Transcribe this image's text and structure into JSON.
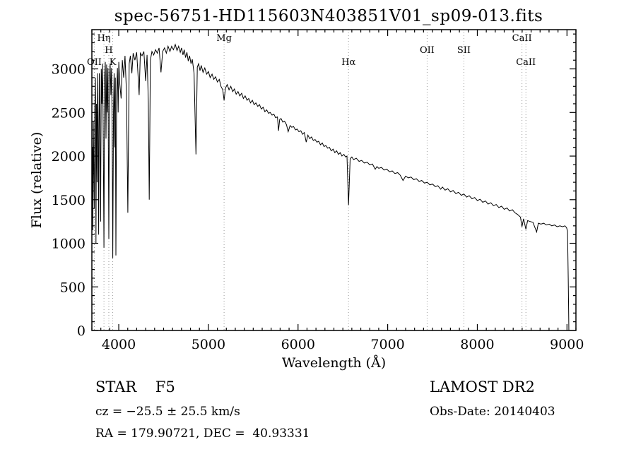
{
  "chart_data": {
    "type": "line",
    "title": "spec-56751-HD115603N403851V01_sp09-013.fits",
    "xlabel": "Wavelength (Å)",
    "ylabel": "Flux (relative)",
    "xlim": [
      3700,
      9100
    ],
    "ylim": [
      0,
      3450
    ],
    "x_major_ticks": [
      4000,
      5000,
      6000,
      7000,
      8000,
      9000
    ],
    "x_minor_step": 100,
    "y_major_ticks": [
      0,
      500,
      1000,
      1500,
      2000,
      2500,
      3000
    ],
    "y_minor_step": 100,
    "grid": false,
    "line_color": "#000000",
    "marker_line_color": "#9a9a9a",
    "legend": "none",
    "spectral_lines": [
      {
        "label": "Hη",
        "wl": 3835,
        "row": 0
      },
      {
        "label": "H",
        "wl": 3889,
        "row": 1
      },
      {
        "label": "OII",
        "wl": 3727,
        "row": 2
      },
      {
        "label": "K",
        "wl": 3933,
        "row": 2
      },
      {
        "label": "Mg",
        "wl": 5175,
        "row": 0
      },
      {
        "label": "Hα",
        "wl": 6563,
        "row": 2
      },
      {
        "label": "OII",
        "wl": 7440,
        "row": 1
      },
      {
        "label": "SII",
        "wl": 7850,
        "row": 1
      },
      {
        "label": "CaII",
        "wl": 8498,
        "row": 0
      },
      {
        "label": "CaII",
        "wl": 8542,
        "row": 2
      }
    ],
    "series": [
      {
        "name": "spectrum",
        "points": [
          [
            3700,
            1500
          ],
          [
            3706,
            2100
          ],
          [
            3711,
            1150
          ],
          [
            3716,
            2400
          ],
          [
            3722,
            1800
          ],
          [
            3727,
            1400
          ],
          [
            3733,
            2550
          ],
          [
            3740,
            2900
          ],
          [
            3746,
            1000
          ],
          [
            3752,
            2600
          ],
          [
            3758,
            1700
          ],
          [
            3764,
            2950
          ],
          [
            3770,
            2300
          ],
          [
            3776,
            1100
          ],
          [
            3783,
            2950
          ],
          [
            3790,
            2400
          ],
          [
            3798,
            1250
          ],
          [
            3805,
            3000
          ],
          [
            3812,
            2600
          ],
          [
            3820,
            3060
          ],
          [
            3828,
            2100
          ],
          [
            3835,
            950
          ],
          [
            3842,
            2900
          ],
          [
            3850,
            3080
          ],
          [
            3858,
            2200
          ],
          [
            3865,
            3050
          ],
          [
            3872,
            2500
          ],
          [
            3880,
            3010
          ],
          [
            3889,
            1050
          ],
          [
            3896,
            2900
          ],
          [
            3904,
            3060
          ],
          [
            3912,
            2700
          ],
          [
            3919,
            3010
          ],
          [
            3926,
            2400
          ],
          [
            3933,
            830
          ],
          [
            3941,
            2500
          ],
          [
            3948,
            2950
          ],
          [
            3955,
            2100
          ],
          [
            3962,
            2900
          ],
          [
            3968,
            860
          ],
          [
            3976,
            2700
          ],
          [
            3985,
            3010
          ],
          [
            3993,
            2500
          ],
          [
            4000,
            3080
          ],
          [
            4012,
            2820
          ],
          [
            4026,
            2660
          ],
          [
            4040,
            3100
          ],
          [
            4055,
            2900
          ],
          [
            4070,
            3150
          ],
          [
            4086,
            2720
          ],
          [
            4101,
            1350
          ],
          [
            4116,
            3060
          ],
          [
            4130,
            3150
          ],
          [
            4146,
            2950
          ],
          [
            4160,
            3180
          ],
          [
            4180,
            3100
          ],
          [
            4200,
            3190
          ],
          [
            4214,
            2950
          ],
          [
            4227,
            2700
          ],
          [
            4241,
            3180
          ],
          [
            4260,
            3150
          ],
          [
            4280,
            3200
          ],
          [
            4300,
            2860
          ],
          [
            4316,
            3160
          ],
          [
            4330,
            2620
          ],
          [
            4340,
            1500
          ],
          [
            4353,
            3100
          ],
          [
            4370,
            3200
          ],
          [
            4390,
            3160
          ],
          [
            4410,
            3220
          ],
          [
            4430,
            3180
          ],
          [
            4450,
            3240
          ],
          [
            4471,
            2960
          ],
          [
            4490,
            3200
          ],
          [
            4510,
            3240
          ],
          [
            4531,
            3180
          ],
          [
            4550,
            3260
          ],
          [
            4571,
            3200
          ],
          [
            4590,
            3260
          ],
          [
            4610,
            3220
          ],
          [
            4630,
            3280
          ],
          [
            4650,
            3210
          ],
          [
            4668,
            3260
          ],
          [
            4686,
            3190
          ],
          [
            4700,
            3240
          ],
          [
            4716,
            3160
          ],
          [
            4730,
            3220
          ],
          [
            4745,
            3130
          ],
          [
            4760,
            3190
          ],
          [
            4775,
            3090
          ],
          [
            4790,
            3150
          ],
          [
            4806,
            3060
          ],
          [
            4820,
            3110
          ],
          [
            4840,
            2950
          ],
          [
            4861,
            2020
          ],
          [
            4876,
            3020
          ],
          [
            4890,
            3060
          ],
          [
            4906,
            2980
          ],
          [
            4920,
            3040
          ],
          [
            4940,
            2960
          ],
          [
            4960,
            3010
          ],
          [
            4980,
            2940
          ],
          [
            5000,
            2970
          ],
          [
            5020,
            2900
          ],
          [
            5041,
            2940
          ],
          [
            5060,
            2880
          ],
          [
            5080,
            2910
          ],
          [
            5100,
            2850
          ],
          [
            5121,
            2880
          ],
          [
            5140,
            2800
          ],
          [
            5160,
            2760
          ],
          [
            5175,
            2640
          ],
          [
            5191,
            2780
          ],
          [
            5210,
            2820
          ],
          [
            5230,
            2760
          ],
          [
            5250,
            2800
          ],
          [
            5271,
            2740
          ],
          [
            5290,
            2770
          ],
          [
            5310,
            2710
          ],
          [
            5330,
            2740
          ],
          [
            5350,
            2690
          ],
          [
            5371,
            2720
          ],
          [
            5390,
            2660
          ],
          [
            5410,
            2690
          ],
          [
            5431,
            2640
          ],
          [
            5450,
            2660
          ],
          [
            5470,
            2610
          ],
          [
            5490,
            2640
          ],
          [
            5510,
            2590
          ],
          [
            5530,
            2610
          ],
          [
            5551,
            2570
          ],
          [
            5570,
            2590
          ],
          [
            5590,
            2540
          ],
          [
            5611,
            2560
          ],
          [
            5630,
            2510
          ],
          [
            5650,
            2530
          ],
          [
            5671,
            2490
          ],
          [
            5690,
            2500
          ],
          [
            5710,
            2470
          ],
          [
            5731,
            2480
          ],
          [
            5750,
            2440
          ],
          [
            5770,
            2450
          ],
          [
            5782,
            2290
          ],
          [
            5795,
            2420
          ],
          [
            5810,
            2430
          ],
          [
            5830,
            2390
          ],
          [
            5850,
            2400
          ],
          [
            5871,
            2360
          ],
          [
            5890,
            2280
          ],
          [
            5911,
            2350
          ],
          [
            5930,
            2330
          ],
          [
            5950,
            2340
          ],
          [
            5971,
            2300
          ],
          [
            5990,
            2310
          ],
          [
            6010,
            2280
          ],
          [
            6031,
            2290
          ],
          [
            6050,
            2250
          ],
          [
            6070,
            2270
          ],
          [
            6091,
            2160
          ],
          [
            6110,
            2240
          ],
          [
            6130,
            2200
          ],
          [
            6151,
            2220
          ],
          [
            6170,
            2180
          ],
          [
            6190,
            2190
          ],
          [
            6211,
            2160
          ],
          [
            6230,
            2170
          ],
          [
            6250,
            2130
          ],
          [
            6271,
            2150
          ],
          [
            6290,
            2110
          ],
          [
            6310,
            2120
          ],
          [
            6331,
            2090
          ],
          [
            6350,
            2100
          ],
          [
            6370,
            2060
          ],
          [
            6391,
            2080
          ],
          [
            6410,
            2040
          ],
          [
            6430,
            2060
          ],
          [
            6451,
            2020
          ],
          [
            6470,
            2040
          ],
          [
            6490,
            2000
          ],
          [
            6511,
            2020
          ],
          [
            6530,
            1990
          ],
          [
            6546,
            2000
          ],
          [
            6563,
            1440
          ],
          [
            6581,
            1970
          ],
          [
            6600,
            1990
          ],
          [
            6620,
            1960
          ],
          [
            6650,
            1975
          ],
          [
            6681,
            1940
          ],
          [
            6710,
            1950
          ],
          [
            6740,
            1920
          ],
          [
            6771,
            1930
          ],
          [
            6800,
            1900
          ],
          [
            6830,
            1910
          ],
          [
            6861,
            1850
          ],
          [
            6880,
            1880
          ],
          [
            6900,
            1860
          ],
          [
            6931,
            1870
          ],
          [
            6960,
            1840
          ],
          [
            6990,
            1850
          ],
          [
            7021,
            1820
          ],
          [
            7050,
            1830
          ],
          [
            7080,
            1800
          ],
          [
            7111,
            1810
          ],
          [
            7140,
            1780
          ],
          [
            7171,
            1720
          ],
          [
            7200,
            1770
          ],
          [
            7231,
            1750
          ],
          [
            7260,
            1760
          ],
          [
            7291,
            1730
          ],
          [
            7320,
            1740
          ],
          [
            7351,
            1710
          ],
          [
            7380,
            1720
          ],
          [
            7411,
            1690
          ],
          [
            7440,
            1700
          ],
          [
            7471,
            1670
          ],
          [
            7500,
            1680
          ],
          [
            7531,
            1650
          ],
          [
            7560,
            1660
          ],
          [
            7591,
            1620
          ],
          [
            7611,
            1645
          ],
          [
            7641,
            1610
          ],
          [
            7670,
            1625
          ],
          [
            7701,
            1590
          ],
          [
            7730,
            1605
          ],
          [
            7761,
            1570
          ],
          [
            7790,
            1585
          ],
          [
            7821,
            1550
          ],
          [
            7850,
            1565
          ],
          [
            7881,
            1530
          ],
          [
            7910,
            1545
          ],
          [
            7941,
            1510
          ],
          [
            7970,
            1525
          ],
          [
            8000,
            1490
          ],
          [
            8031,
            1505
          ],
          [
            8060,
            1470
          ],
          [
            8091,
            1485
          ],
          [
            8120,
            1450
          ],
          [
            8151,
            1465
          ],
          [
            8180,
            1430
          ],
          [
            8211,
            1445
          ],
          [
            8240,
            1410
          ],
          [
            8271,
            1425
          ],
          [
            8300,
            1390
          ],
          [
            8331,
            1405
          ],
          [
            8360,
            1370
          ],
          [
            8391,
            1385
          ],
          [
            8420,
            1350
          ],
          [
            8450,
            1330
          ],
          [
            8481,
            1300
          ],
          [
            8498,
            1190
          ],
          [
            8516,
            1280
          ],
          [
            8542,
            1160
          ],
          [
            8561,
            1260
          ],
          [
            8590,
            1250
          ],
          [
            8621,
            1240
          ],
          [
            8662,
            1130
          ],
          [
            8681,
            1230
          ],
          [
            8710,
            1220
          ],
          [
            8741,
            1230
          ],
          [
            8770,
            1210
          ],
          [
            8801,
            1220
          ],
          [
            8830,
            1200
          ],
          [
            8861,
            1210
          ],
          [
            8890,
            1190
          ],
          [
            8921,
            1200
          ],
          [
            8950,
            1190
          ],
          [
            8976,
            1200
          ],
          [
            8995,
            1180
          ],
          [
            9006,
            1140
          ],
          [
            9014,
            600
          ],
          [
            9021,
            0
          ]
        ]
      }
    ]
  },
  "annotations": {
    "object_type": "STAR    F5",
    "survey": "LAMOST DR2",
    "cz": "cz = −25.5 ± 25.5 km/s",
    "obs_date": "Obs-Date: 20140403",
    "radec": "RA = 179.90721, DEC =  40.93331"
  }
}
